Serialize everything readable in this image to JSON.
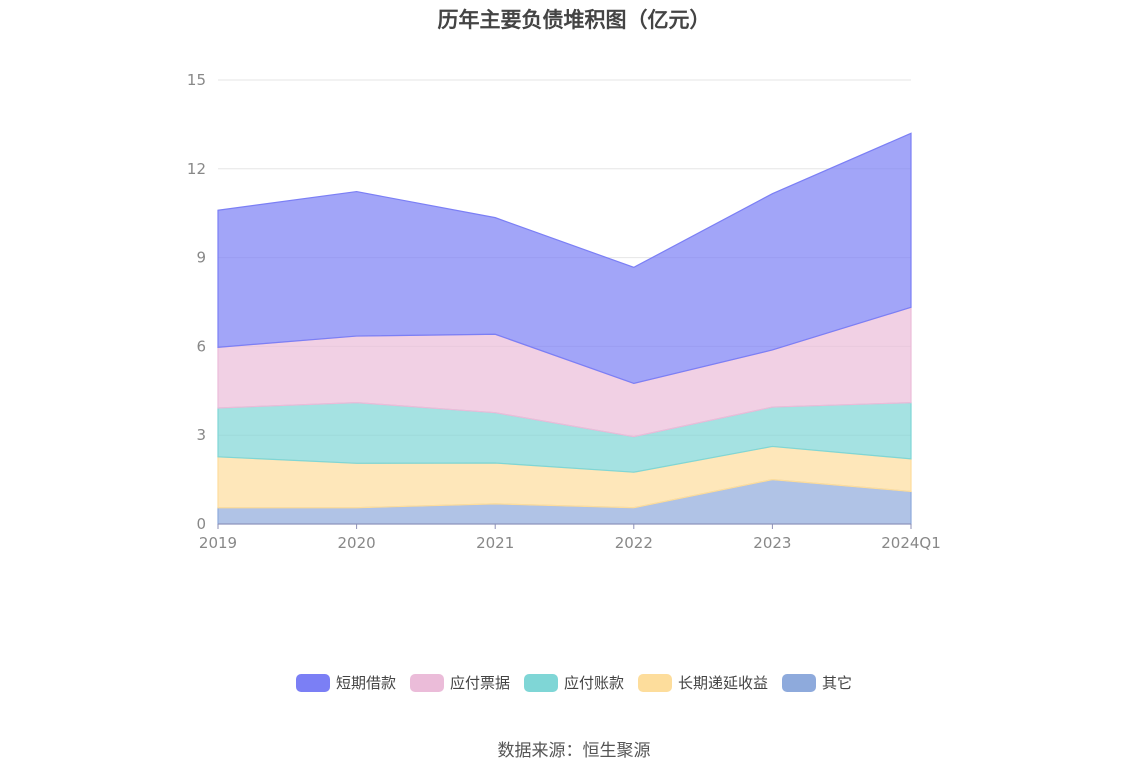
{
  "chart_data": {
    "type": "area",
    "stacked": true,
    "title": "历年主要负债堆积图（亿元）",
    "categories": [
      "2019",
      "2020",
      "2021",
      "2022",
      "2023",
      "2024Q1"
    ],
    "ylim": [
      0,
      15
    ],
    "yticks": [
      "0",
      "3",
      "6",
      "9",
      "12",
      "15"
    ],
    "grid": true,
    "legend_position": "bottom",
    "series": [
      {
        "name": "其它",
        "color": "#8eaadc",
        "values": [
          0.55,
          0.55,
          0.68,
          0.55,
          1.5,
          1.1
        ]
      },
      {
        "name": "长期递延收益",
        "color": "#fddd9c",
        "values": [
          1.72,
          1.5,
          1.38,
          1.2,
          1.12,
          1.1
        ]
      },
      {
        "name": "应付账款",
        "color": "#7fd6d6",
        "values": [
          1.65,
          2.05,
          1.7,
          1.2,
          1.33,
          1.9
        ]
      },
      {
        "name": "应付票据",
        "color": "#ebbcd9",
        "values": [
          2.05,
          2.25,
          2.65,
          1.8,
          1.93,
          3.22
        ]
      },
      {
        "name": "短期借款",
        "color": "#7b7ff5",
        "values": [
          4.63,
          4.88,
          3.94,
          3.92,
          5.28,
          5.88
        ]
      }
    ],
    "legend_order": [
      "短期借款",
      "应付票据",
      "应付账款",
      "长期递延收益",
      "其它"
    ]
  },
  "source_label": "数据来源：恒生聚源"
}
